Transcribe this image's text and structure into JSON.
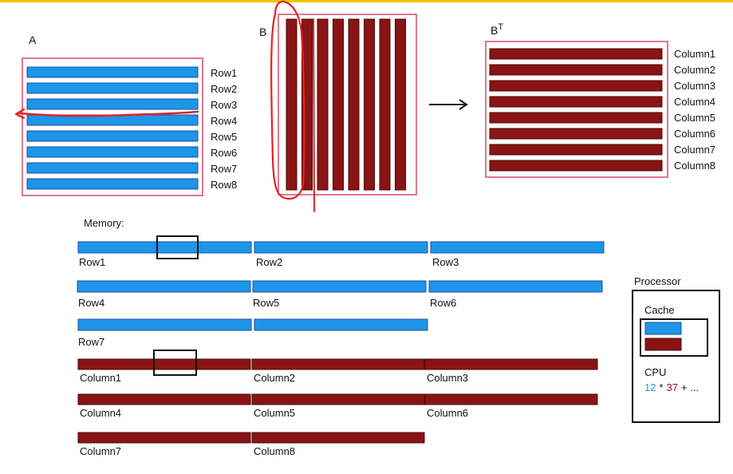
{
  "colors": {
    "blue": "#1e96e8",
    "blue_stroke": "#1c4fa3",
    "maroon": "#8a1414",
    "maroon_stroke": "#4a0808",
    "frame_pink": "#d84a6a",
    "annotation_red": "#e02424",
    "top_strip": "#f5c400",
    "cpu_left_operand": "#1e96e8",
    "cpu_right_operand": "#8a1414"
  },
  "matrix_a": {
    "label": "A",
    "rows": [
      "Row1",
      "Row2",
      "Row3",
      "Row4",
      "Row5",
      "Row6",
      "Row7",
      "Row8"
    ]
  },
  "matrix_b": {
    "label": "B",
    "column_count": 8
  },
  "matrix_bt": {
    "label": "B",
    "superscript": "T",
    "columns": [
      "Column1",
      "Column2",
      "Column3",
      "Column4",
      "Column5",
      "Column6",
      "Column7",
      "Column8"
    ]
  },
  "arrow_label": "→",
  "memory": {
    "title": "Memory:",
    "rows": [
      "Row1",
      "Row2",
      "Row3",
      "Row4",
      "Row5",
      "Row6",
      "Row7"
    ],
    "columns": [
      "Column1",
      "Column2",
      "Column3",
      "Column4",
      "Column5",
      "Column6",
      "Column7",
      "Column8"
    ]
  },
  "processor": {
    "title": "Processor",
    "cache_label": "Cache",
    "cpu_label": "CPU",
    "cpu_left_operand": "12",
    "cpu_op": "*",
    "cpu_right_operand": "37",
    "cpu_tail": "+ ..."
  }
}
